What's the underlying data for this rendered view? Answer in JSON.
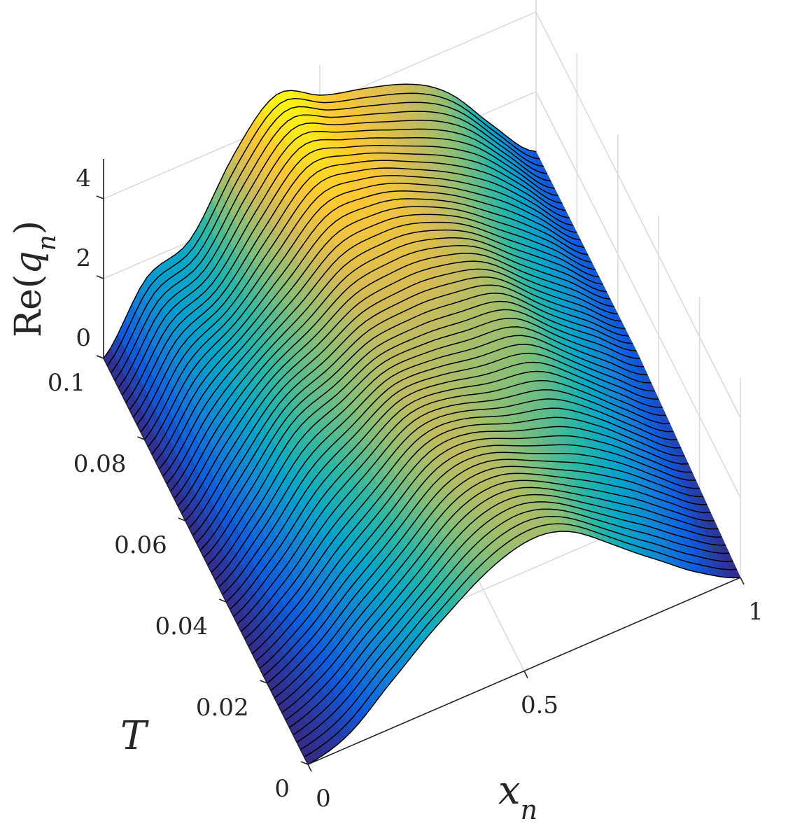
{
  "chart_data": {
    "type": "surface",
    "xlabel": "x_n",
    "ylabel": "T",
    "zlabel": "Re(q_n)",
    "xlim": [
      0,
      1
    ],
    "ylim": [
      0,
      0.1
    ],
    "zlim": [
      0,
      5
    ],
    "x_ticks": [
      "0",
      "0.5",
      "1"
    ],
    "y_ticks": [
      "0",
      "0.02",
      "0.04",
      "0.06",
      "0.08",
      "0.1"
    ],
    "z_ticks": [
      "0",
      "2",
      "4"
    ],
    "grid": true,
    "colormap": "parula",
    "colormap_colors": [
      "#352a87",
      "#0f5cdd",
      "#1481d6",
      "#06a4ca",
      "#2eb7a4",
      "#87bf77",
      "#d1bb59",
      "#fec832",
      "#f9fb0e"
    ],
    "mesh_lines": "black, one curve per time sample",
    "time_slices": [
      {
        "T": 0.0,
        "x": [
          0,
          0.1,
          0.2,
          0.3,
          0.4,
          0.5,
          0.6,
          0.7,
          0.8,
          0.9,
          1.0
        ],
        "re_q": [
          0.0,
          0.3,
          1.2,
          2.2,
          2.9,
          3.1,
          2.9,
          2.3,
          1.5,
          0.6,
          0.0
        ]
      },
      {
        "T": 0.05,
        "x": [
          0,
          0.1,
          0.2,
          0.3,
          0.4,
          0.5,
          0.6,
          0.7,
          0.8,
          0.9,
          1.0
        ],
        "re_q": [
          0.0,
          1.1,
          2.3,
          2.8,
          3.5,
          3.6,
          3.3,
          3.0,
          2.2,
          1.4,
          0.5
        ]
      },
      {
        "T": 0.1,
        "x": [
          0,
          0.1,
          0.2,
          0.3,
          0.4,
          0.5,
          0.6,
          0.7,
          0.8,
          0.9,
          1.0
        ],
        "re_q": [
          0.0,
          1.6,
          2.1,
          3.6,
          4.6,
          4.3,
          4.1,
          3.6,
          2.8,
          1.6,
          0.5
        ]
      }
    ]
  }
}
